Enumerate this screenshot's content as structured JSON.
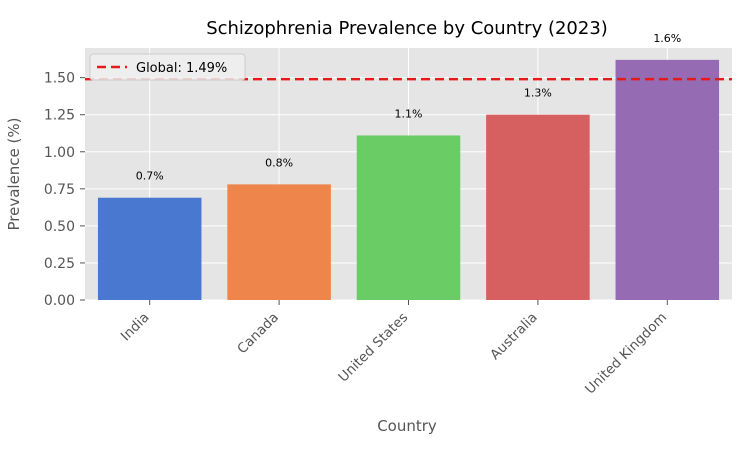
{
  "chart_data": {
    "type": "bar",
    "title": "Schizophrenia Prevalence by Country (2023)",
    "xlabel": "Country",
    "ylabel": "Prevalence (%)",
    "categories": [
      "India",
      "Canada",
      "United States",
      "Australia",
      "United Kingdom"
    ],
    "values": [
      0.69,
      0.78,
      1.11,
      1.25,
      1.62
    ],
    "data_labels": [
      "0.7%",
      "0.8%",
      "1.1%",
      "1.3%",
      "1.6%"
    ],
    "colors": [
      "#4878d0",
      "#ee854a",
      "#6acc64",
      "#d65f5f",
      "#956cb4"
    ],
    "ylim": [
      0,
      1.7
    ],
    "yticks": [
      "0.00",
      "0.25",
      "0.50",
      "0.75",
      "1.00",
      "1.25",
      "1.50"
    ],
    "ytick_values": [
      0,
      0.25,
      0.5,
      0.75,
      1.0,
      1.25,
      1.5
    ],
    "grid": true,
    "reference_line": {
      "value": 1.49,
      "label": "Global: 1.49%",
      "color": "#e41a1c",
      "style": "dashed"
    },
    "legend_position": "top-left"
  }
}
